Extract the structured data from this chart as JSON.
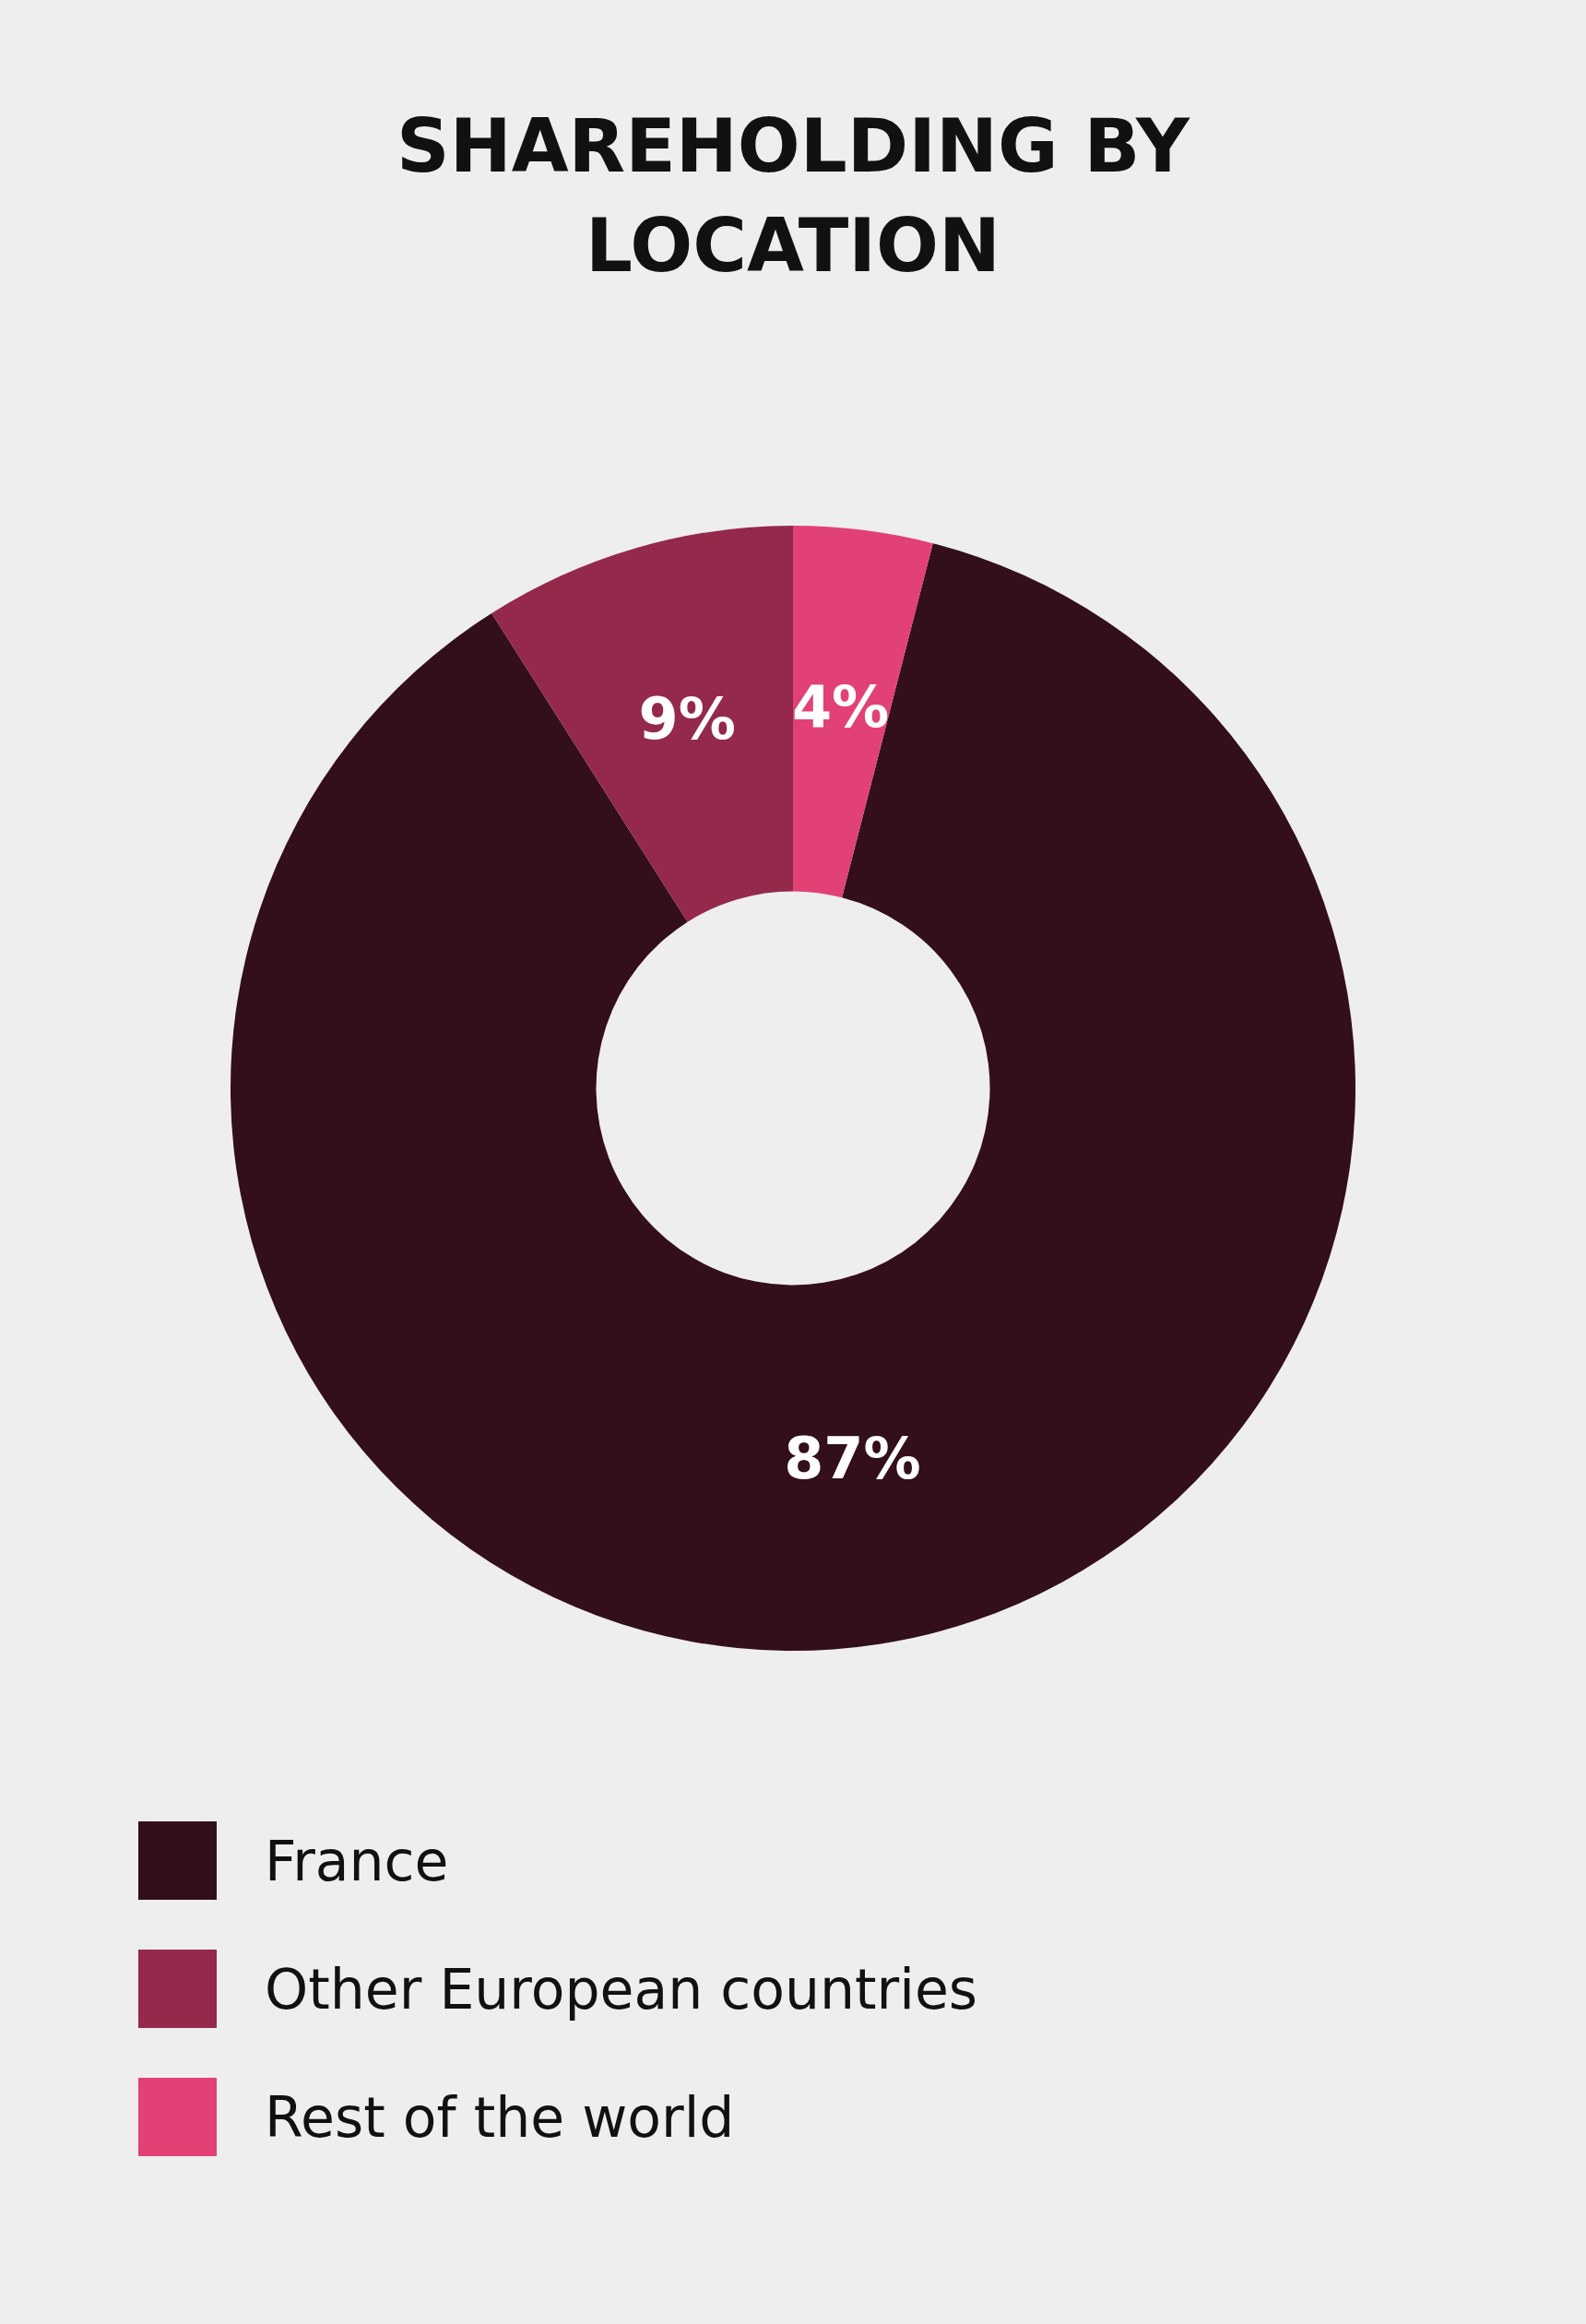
{
  "chart_data": {
    "type": "donut",
    "title": "SHAREHOLDING BY LOCATION",
    "categories": [
      "France",
      "Other European countries",
      "Rest of the world"
    ],
    "values": [
      87,
      9,
      4
    ],
    "colors": [
      "#330f1b",
      "#94294b",
      "#e24175"
    ],
    "value_labels": [
      "87%",
      "9%",
      "4%"
    ],
    "legend": "bottom left"
  }
}
